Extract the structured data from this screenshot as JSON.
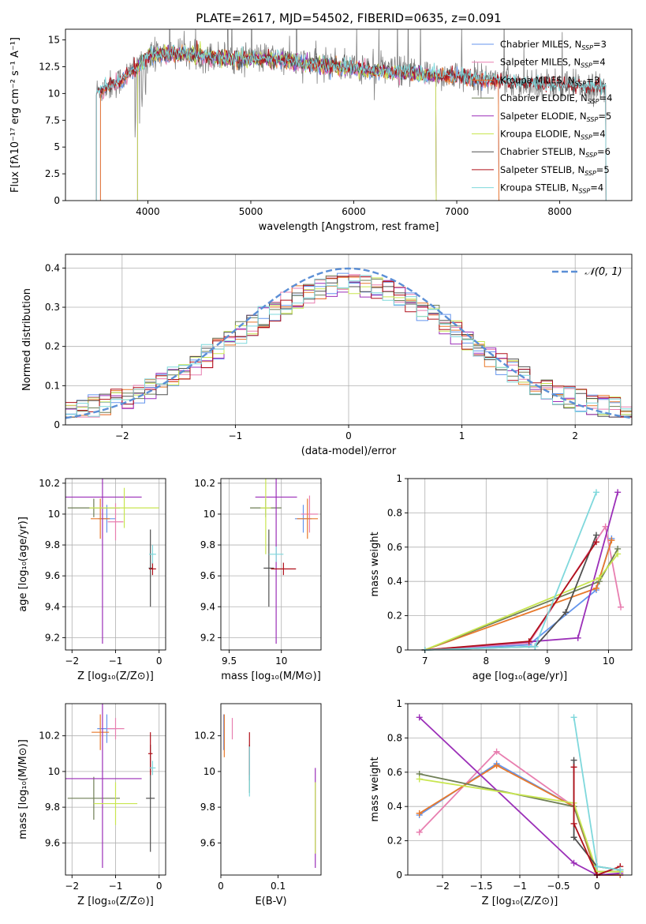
{
  "figure": {
    "title": "PLATE=2617, MJD=54502, FIBERID=0635, z=0.091"
  },
  "colors": {
    "Chabrier MILES": "#6495ed",
    "Salpeter MILES": "#e87fb0",
    "Kroupa MILES": "#e8792b",
    "Chabrier ELODIE": "#6f7f56",
    "Salpeter ELODIE": "#9b2fb8",
    "Kroupa ELODIE": "#c8e650",
    "Chabrier STELIB": "#505050",
    "Salpeter STELIB": "#b0101a",
    "Kroupa STELIB": "#7fd8dc",
    "data_spectrum": "#808080",
    "normal_curve": "#5b8fd6"
  },
  "chart_data": [
    {
      "id": "spectrum",
      "type": "line",
      "xlabel": "wavelength [Angstrom, rest frame]",
      "ylabel": "Flux [fλ10⁻¹⁷ erg cm⁻² s⁻¹ A⁻¹]",
      "xlim": [
        3200,
        8700
      ],
      "ylim": [
        0,
        16
      ],
      "xticks": [
        4000,
        5000,
        6000,
        7000,
        8000
      ],
      "yticks": [
        0.0,
        2.5,
        5.0,
        7.5,
        10.0,
        12.5,
        15.0
      ],
      "grid": false,
      "legend_position": "upper-right",
      "legend": [
        {
          "label": "Chabrier MILES, N",
          "sub": "SSP",
          "tail": "=3",
          "key": "Chabrier MILES"
        },
        {
          "label": "Salpeter MILES, N",
          "sub": "SSP",
          "tail": "=4",
          "key": "Salpeter MILES"
        },
        {
          "label": "Kroupa MILES, N",
          "sub": "SSP",
          "tail": "=3",
          "key": "Kroupa MILES"
        },
        {
          "label": "Chabrier ELODIE, N",
          "sub": "SSP",
          "tail": "=4",
          "key": "Chabrier ELODIE"
        },
        {
          "label": "Salpeter ELODIE, N",
          "sub": "SSP",
          "tail": "=5",
          "key": "Salpeter ELODIE"
        },
        {
          "label": "Kroupa ELODIE, N",
          "sub": "SSP",
          "tail": "=4",
          "key": "Kroupa ELODIE"
        },
        {
          "label": "Chabrier STELIB, N",
          "sub": "SSP",
          "tail": "=6",
          "key": "Chabrier STELIB"
        },
        {
          "label": "Salpeter STELIB, N",
          "sub": "SSP",
          "tail": "=5",
          "key": "Salpeter STELIB"
        },
        {
          "label": "Kroupa STELIB, N",
          "sub": "SSP",
          "tail": "=4",
          "key": "Kroupa STELIB"
        }
      ],
      "continuum_shape": [
        [
          3500,
          10.2
        ],
        [
          3700,
          11.0
        ],
        [
          3900,
          12.5
        ],
        [
          4000,
          13.6
        ],
        [
          4300,
          13.8
        ],
        [
          4700,
          13.4
        ],
        [
          5200,
          13.3
        ],
        [
          5700,
          12.7
        ],
        [
          6200,
          12.2
        ],
        [
          6600,
          11.9
        ],
        [
          7000,
          11.6
        ],
        [
          7500,
          11.1
        ],
        [
          8000,
          10.8
        ],
        [
          8450,
          10.5
        ]
      ],
      "model_ranges": {
        "MILES": [
          3540,
          7410
        ],
        "ELODIE": [
          3900,
          6800
        ],
        "STELIB": [
          3500,
          8450
        ]
      }
    },
    {
      "id": "residuals",
      "type": "histogram",
      "xlabel": "(data-model)/error",
      "ylabel": "Normed distribution",
      "xlim": [
        -2.5,
        2.5
      ],
      "ylim": [
        0,
        0.435
      ],
      "xticks": [
        -2,
        -1,
        0,
        1,
        2
      ],
      "yticks": [
        0.0,
        0.1,
        0.2,
        0.3,
        0.4
      ],
      "grid": true,
      "legend_position": "upper-right",
      "legend_label": "𝒩(0, 1)",
      "gaussian": {
        "mean": 0,
        "sigma": 1
      },
      "bin_width": 0.1
    },
    {
      "id": "age_vs_Z",
      "type": "errorbar",
      "xlabel": "Z [log₁₀(Z/Z⊙)]",
      "ylabel": "age  [log₁₀(age/yr)]",
      "xlim": [
        -2.15,
        0.15
      ],
      "ylim": [
        9.12,
        10.23
      ],
      "xticks": [
        -2,
        -1,
        0
      ],
      "yticks": [
        9.2,
        9.4,
        9.6,
        9.8,
        10.0,
        10.2
      ],
      "grid": true,
      "points": [
        {
          "model": "Chabrier MILES",
          "x": -1.2,
          "y": 9.97,
          "xerr": 0.2,
          "yerr": 0.09
        },
        {
          "model": "Salpeter MILES",
          "x": -1.0,
          "y": 9.95,
          "xerr": 0.18,
          "yerr": 0.12
        },
        {
          "model": "Kroupa MILES",
          "x": -1.35,
          "y": 9.97,
          "xerr": 0.22,
          "yerr": 0.13
        },
        {
          "model": "Chabrier ELODIE",
          "x": -1.5,
          "y": 10.04,
          "xerr": 0.6,
          "yerr": 0.06
        },
        {
          "model": "Salpeter ELODIE",
          "x": -1.3,
          "y": 10.11,
          "xerr": 0.9,
          "yerr": 0.95
        },
        {
          "model": "Kroupa ELODIE",
          "x": -0.8,
          "y": 10.04,
          "xerr": 0.8,
          "yerr": 0.13
        },
        {
          "model": "Chabrier STELIB",
          "x": -0.2,
          "y": 9.65,
          "xerr": 0.04,
          "yerr": 0.25
        },
        {
          "model": "Salpeter STELIB",
          "x": -0.15,
          "y": 9.645,
          "xerr": 0.08,
          "yerr": 0.04
        },
        {
          "model": "Kroupa STELIB",
          "x": -0.15,
          "y": 9.74,
          "xerr": 0.08,
          "yerr": 0.06
        }
      ]
    },
    {
      "id": "age_vs_mass",
      "type": "errorbar",
      "xlabel": "mass [log₁₀(M/M⊙)]",
      "ylabel": "",
      "xlim": [
        9.42,
        10.38
      ],
      "ylim": [
        9.12,
        10.23
      ],
      "xticks": [
        9.5,
        10.0
      ],
      "yticks": [
        9.2,
        9.4,
        9.6,
        9.8,
        10.0,
        10.2
      ],
      "grid": true,
      "points": [
        {
          "model": "Chabrier MILES",
          "x": 10.21,
          "y": 9.97,
          "xerr": 0.08,
          "yerr": 0.09
        },
        {
          "model": "Salpeter MILES",
          "x": 10.27,
          "y": 10.0,
          "xerr": 0.08,
          "yerr": 0.12
        },
        {
          "model": "Kroupa MILES",
          "x": 10.25,
          "y": 9.97,
          "xerr": 0.1,
          "yerr": 0.13
        },
        {
          "model": "Chabrier ELODIE",
          "x": 9.85,
          "y": 10.04,
          "xerr": 0.15,
          "yerr": 0.06
        },
        {
          "model": "Salpeter ELODIE",
          "x": 9.95,
          "y": 10.11,
          "xerr": 0.2,
          "yerr": 0.95
        },
        {
          "model": "Kroupa ELODIE",
          "x": 9.85,
          "y": 10.04,
          "xerr": 0.05,
          "yerr": 0.3
        },
        {
          "model": "Chabrier STELIB",
          "x": 9.88,
          "y": 9.65,
          "xerr": 0.05,
          "yerr": 0.25
        },
        {
          "model": "Salpeter STELIB",
          "x": 10.02,
          "y": 9.645,
          "xerr": 0.12,
          "yerr": 0.04
        },
        {
          "model": "Kroupa STELIB",
          "x": 9.95,
          "y": 9.74,
          "xerr": 0.07,
          "yerr": 0.05
        }
      ]
    },
    {
      "id": "weight_vs_age",
      "type": "line",
      "xlabel": "age  [log₁₀(age/yr)]",
      "ylabel": "mass weight",
      "xlim": [
        6.72,
        10.38
      ],
      "ylim": [
        0,
        1.0
      ],
      "xticks": [
        7,
        8,
        9,
        10
      ],
      "yticks": [
        0.0,
        0.2,
        0.4,
        0.6,
        0.8,
        1.0
      ],
      "grid": true,
      "series": [
        {
          "model": "Chabrier MILES",
          "x": [
            7.0,
            8.7,
            9.8,
            10.05
          ],
          "y": [
            0.0,
            0.03,
            0.35,
            0.65
          ]
        },
        {
          "model": "Salpeter MILES",
          "x": [
            7.0,
            8.7,
            9.95,
            10.2
          ],
          "y": [
            0.0,
            0.04,
            0.72,
            0.25
          ]
        },
        {
          "model": "Kroupa MILES",
          "x": [
            7.0,
            9.8,
            10.05
          ],
          "y": [
            0.0,
            0.36,
            0.64
          ]
        },
        {
          "model": "Chabrier ELODIE",
          "x": [
            7.0,
            9.85,
            10.15
          ],
          "y": [
            0.0,
            0.4,
            0.59
          ]
        },
        {
          "model": "Salpeter ELODIE",
          "x": [
            7.0,
            9.5,
            10.15
          ],
          "y": [
            0.0,
            0.07,
            0.92
          ]
        },
        {
          "model": "Kroupa ELODIE",
          "x": [
            7.0,
            9.85,
            10.15
          ],
          "y": [
            0.0,
            0.42,
            0.56
          ]
        },
        {
          "model": "Chabrier STELIB",
          "x": [
            7.0,
            8.8,
            9.3,
            9.8
          ],
          "y": [
            0.0,
            0.02,
            0.22,
            0.67
          ]
        },
        {
          "model": "Salpeter STELIB",
          "x": [
            7.0,
            8.7,
            9.8
          ],
          "y": [
            0.0,
            0.05,
            0.63
          ]
        },
        {
          "model": "Kroupa STELIB",
          "x": [
            7.0,
            8.8,
            9.8
          ],
          "y": [
            0.0,
            0.02,
            0.92
          ]
        }
      ]
    },
    {
      "id": "mass_vs_Z",
      "type": "errorbar",
      "xlabel": "Z [log₁₀(Z/Z⊙)]",
      "ylabel": "mass [log₁₀(M/M⊙)]",
      "xlim": [
        -2.15,
        0.15
      ],
      "ylim": [
        9.42,
        10.38
      ],
      "xticks": [
        -2,
        -1,
        0
      ],
      "yticks": [
        9.6,
        9.8,
        10.0,
        10.2
      ],
      "grid": true,
      "points": [
        {
          "model": "Chabrier MILES",
          "x": -1.2,
          "y": 10.24,
          "xerr": 0.22,
          "yerr": 0.08
        },
        {
          "model": "Salpeter MILES",
          "x": -1.0,
          "y": 10.24,
          "xerr": 0.2,
          "yerr": 0.06
        },
        {
          "model": "Kroupa MILES",
          "x": -1.35,
          "y": 10.22,
          "xerr": 0.2,
          "yerr": 0.1
        },
        {
          "model": "Chabrier ELODIE",
          "x": -1.5,
          "y": 9.85,
          "xerr": 0.6,
          "yerr": 0.12
        },
        {
          "model": "Salpeter ELODIE",
          "x": -1.3,
          "y": 9.96,
          "xerr": 0.9,
          "yerr": 0.5
        },
        {
          "model": "Kroupa ELODIE",
          "x": -1.0,
          "y": 9.82,
          "xerr": 0.5,
          "yerr": 0.12
        },
        {
          "model": "Chabrier STELIB",
          "x": -0.2,
          "y": 9.85,
          "xerr": 0.1,
          "yerr": 0.3
        },
        {
          "model": "Salpeter STELIB",
          "x": -0.2,
          "y": 10.1,
          "xerr": 0.05,
          "yerr": 0.12
        },
        {
          "model": "Kroupa STELIB",
          "x": -0.15,
          "y": 10.02,
          "xerr": 0.07,
          "yerr": 0.04
        }
      ]
    },
    {
      "id": "mass_vs_ebv",
      "type": "errorbar",
      "xlabel": "E(B-V)",
      "ylabel": "",
      "xlim": [
        0.0,
        0.175
      ],
      "ylim": [
        9.42,
        10.38
      ],
      "xticks": [
        0.0,
        0.1
      ],
      "yticks": [
        9.6,
        9.8,
        10.0,
        10.2
      ],
      "grid": false,
      "points": [
        {
          "model": "Chabrier MILES",
          "x": 0.005,
          "y": 10.22,
          "xerr": 0,
          "yerr": 0.1
        },
        {
          "model": "Salpeter MILES",
          "x": 0.02,
          "y": 10.24,
          "xerr": 0,
          "yerr": 0.06
        },
        {
          "model": "Kroupa MILES",
          "x": 0.006,
          "y": 10.2,
          "xerr": 0,
          "yerr": 0.12
        },
        {
          "model": "Chabrier ELODIE",
          "x": 0.05,
          "y": 10.0,
          "xerr": 0,
          "yerr": 0.12
        },
        {
          "model": "Salpeter ELODIE",
          "x": 0.165,
          "y": 9.74,
          "xerr": 0,
          "yerr": 0.28
        },
        {
          "model": "Kroupa ELODIE",
          "x": 0.165,
          "y": 9.74,
          "xerr": 0,
          "yerr": 0.2
        },
        {
          "model": "Chabrier STELIB",
          "x": 0.05,
          "y": 10.05,
          "xerr": 0,
          "yerr": 0.1
        },
        {
          "model": "Salpeter STELIB",
          "x": 0.05,
          "y": 10.1,
          "xerr": 0,
          "yerr": 0.12
        },
        {
          "model": "Kroupa STELIB",
          "x": 0.05,
          "y": 10.0,
          "xerr": 0,
          "yerr": 0.14
        }
      ]
    },
    {
      "id": "weight_vs_Z",
      "type": "line",
      "xlabel": "Z [log₁₀(Z/Z⊙)]",
      "ylabel": "mass weight",
      "xlim": [
        -2.45,
        0.45
      ],
      "ylim": [
        0,
        1.0
      ],
      "xticks": [
        -2.0,
        -1.5,
        -1.0,
        -0.5,
        0.0
      ],
      "yticks": [
        0.0,
        0.2,
        0.4,
        0.6,
        0.8,
        1.0
      ],
      "grid": true,
      "series": [
        {
          "model": "Chabrier MILES",
          "x": [
            -2.3,
            -1.3,
            -0.3,
            0.0,
            0.3
          ],
          "y": [
            0.35,
            0.65,
            0.4,
            0.0,
            0.0
          ]
        },
        {
          "model": "Salpeter MILES",
          "x": [
            -2.3,
            -1.3,
            -0.3,
            0.0,
            0.3
          ],
          "y": [
            0.25,
            0.72,
            0.4,
            0.0,
            0.0
          ]
        },
        {
          "model": "Kroupa MILES",
          "x": [
            -2.3,
            -1.3,
            -0.3,
            0.0,
            0.3
          ],
          "y": [
            0.36,
            0.64,
            0.4,
            0.0,
            0.0
          ]
        },
        {
          "model": "Chabrier ELODIE",
          "x": [
            -2.3,
            -0.3,
            0.0,
            0.3
          ],
          "y": [
            0.59,
            0.4,
            0.02,
            0.02
          ]
        },
        {
          "model": "Salpeter ELODIE",
          "x": [
            -2.3,
            -0.3,
            0.0,
            0.3
          ],
          "y": [
            0.92,
            0.07,
            0.0,
            0.01
          ]
        },
        {
          "model": "Kroupa ELODIE",
          "x": [
            -2.3,
            -0.3,
            0.0,
            0.3
          ],
          "y": [
            0.56,
            0.42,
            0.02,
            0.02
          ]
        },
        {
          "model": "Chabrier STELIB",
          "x": [
            -0.3,
            -0.3,
            0.0,
            0.3
          ],
          "y": [
            0.67,
            0.22,
            0.05,
            0.03
          ]
        },
        {
          "model": "Salpeter STELIB",
          "x": [
            -0.3,
            -0.3,
            0.0,
            0.3
          ],
          "y": [
            0.63,
            0.3,
            0.0,
            0.05
          ]
        },
        {
          "model": "Kroupa STELIB",
          "x": [
            -0.3,
            0.0,
            0.3
          ],
          "y": [
            0.92,
            0.05,
            0.03
          ]
        }
      ]
    }
  ]
}
